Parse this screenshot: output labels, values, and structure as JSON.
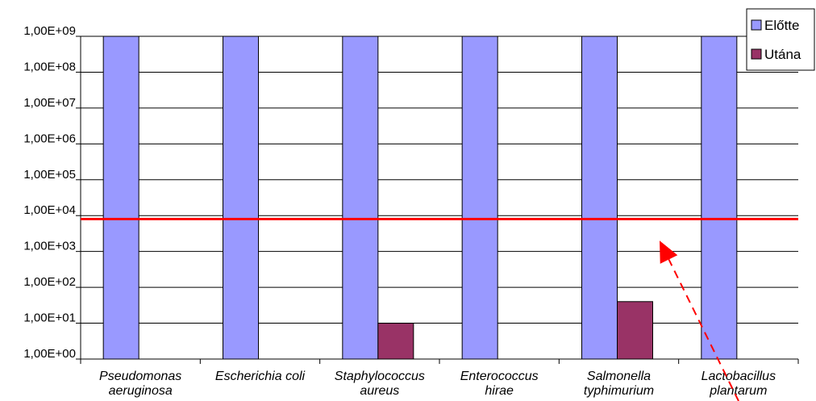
{
  "chart_data": {
    "type": "bar",
    "y_scale": "log",
    "y_tick_labels": [
      "1,00E+00",
      "1,00E+01",
      "1,00E+02",
      "1,00E+03",
      "1,00E+04",
      "1,00E+05",
      "1,00E+06",
      "1,00E+07",
      "1,00E+08",
      "1,00E+09"
    ],
    "ylim": [
      1,
      1000000000
    ],
    "categories": [
      [
        "Pseudomonas",
        "aeruginosa"
      ],
      [
        "Escherichia coli"
      ],
      [
        "Staphylococcus",
        "aureus"
      ],
      [
        "Enterococcus",
        "hirae"
      ],
      [
        "Salmonella",
        "typhimurium"
      ],
      [
        "Lactobacillus",
        "plantarum"
      ]
    ],
    "series": [
      {
        "name": "Előtte",
        "color": "#9999ff",
        "values": [
          1000000000,
          1000000000,
          1000000000,
          1000000000,
          1000000000,
          1000000000
        ]
      },
      {
        "name": "Utána",
        "color": "#993366",
        "values": [
          null,
          null,
          10,
          null,
          40,
          null
        ]
      }
    ],
    "reference_line": {
      "value": 8000,
      "color": "#ff0000"
    },
    "arrow_annotation": {
      "color": "#ff0000",
      "points_to_value": 2000
    },
    "legend_position": "top-right",
    "grid": true
  }
}
